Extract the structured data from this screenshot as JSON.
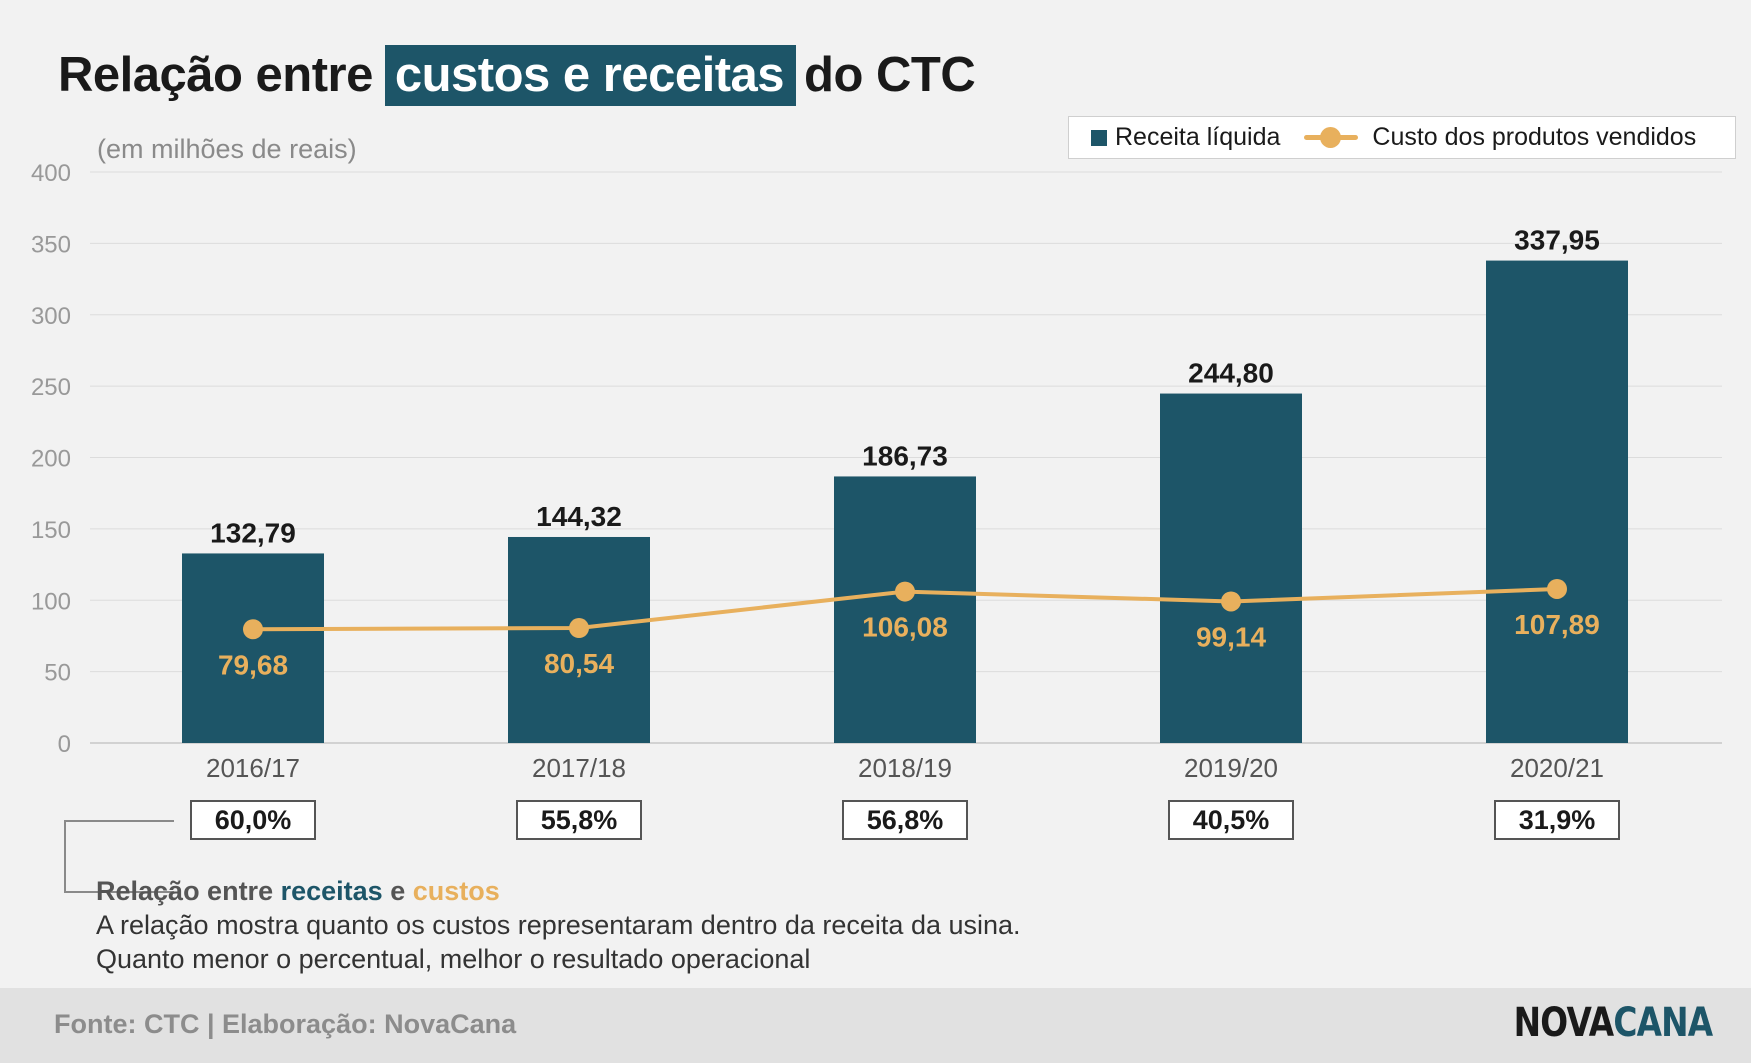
{
  "title": {
    "prefix": "Relação entre",
    "highlight": "custos e receitas",
    "suffix": "do CTC"
  },
  "legend": {
    "bar_label": "Receita líquida",
    "line_label": "Custo dos produtos vendidos"
  },
  "colors": {
    "bar": "#1d5568",
    "line": "#e8b05d",
    "bar_label": "#1a1a1a",
    "axis_text": "#999999",
    "category_text": "#555555"
  },
  "chart_data": {
    "type": "bar",
    "unit_note": "(em milhões de reais)",
    "categories": [
      "2016/17",
      "2017/18",
      "2018/19",
      "2019/20",
      "2020/21"
    ],
    "series": [
      {
        "name": "Receita líquida",
        "type": "bar",
        "values": [
          132.79,
          144.32,
          186.73,
          244.8,
          337.95
        ],
        "labels": [
          "132,79",
          "144,32",
          "186,73",
          "244,80",
          "337,95"
        ]
      },
      {
        "name": "Custo dos produtos vendidos",
        "type": "line",
        "values": [
          79.68,
          80.54,
          106.08,
          99.14,
          107.89
        ],
        "labels": [
          "79,68",
          "80,54",
          "106,08",
          "99,14",
          "107,89"
        ]
      }
    ],
    "ylim": [
      0,
      400
    ],
    "yticks": [
      "0",
      "50",
      "100",
      "150",
      "200",
      "250",
      "300",
      "350",
      "400"
    ],
    "grid": true,
    "legend_position": "top-right",
    "ratios": [
      "60,0%",
      "55,8%",
      "56,8%",
      "40,5%",
      "31,9%"
    ]
  },
  "note": {
    "heading_start": "Relação entre",
    "heading_rec": "receitas",
    "heading_and": "e",
    "heading_cus": "custos",
    "line1": "A relação mostra quanto os custos representaram dentro da receita da usina.",
    "line2": "Quanto menor o percentual, melhor o resultado operacional"
  },
  "footer": {
    "source": "Fonte: CTC | Elaboração: NovaCana",
    "logo_part1": "NOVA",
    "logo_part2": "CANA"
  }
}
